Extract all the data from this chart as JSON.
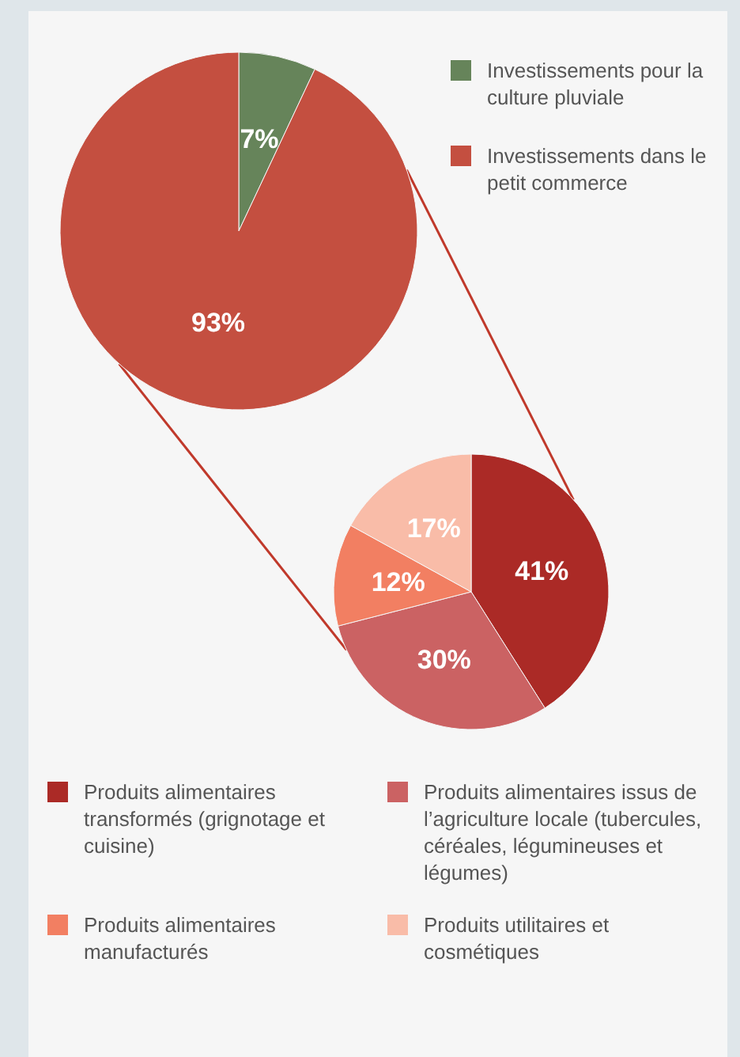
{
  "chart_data": [
    {
      "type": "pie",
      "categories": [
        "Investissements pour la culture pluviale",
        "Investissements dans le petit commerce"
      ],
      "values": [
        7,
        93
      ],
      "colors": [
        "#66845a",
        "#c44f40"
      ],
      "value_labels": [
        "7%",
        "93%"
      ],
      "legend": "top right"
    },
    {
      "type": "pie",
      "categories": [
        "Produits alimentaires transformés (grignotage et cuisine)",
        "Produits alimentaires issus de l’agriculture locale (tubercules, céréales, légumineuses et légumes)",
        "Produits alimentaires manufacturés",
        "Produits utilitaires et cosmétiques"
      ],
      "values": [
        41,
        30,
        12,
        17
      ],
      "colors": [
        "#ab2a26",
        "#cb6263",
        "#f27f62",
        "#f9bca8"
      ],
      "value_labels": [
        "41%",
        "30%",
        "12%",
        "17%"
      ],
      "legend": "bottom"
    }
  ]
}
